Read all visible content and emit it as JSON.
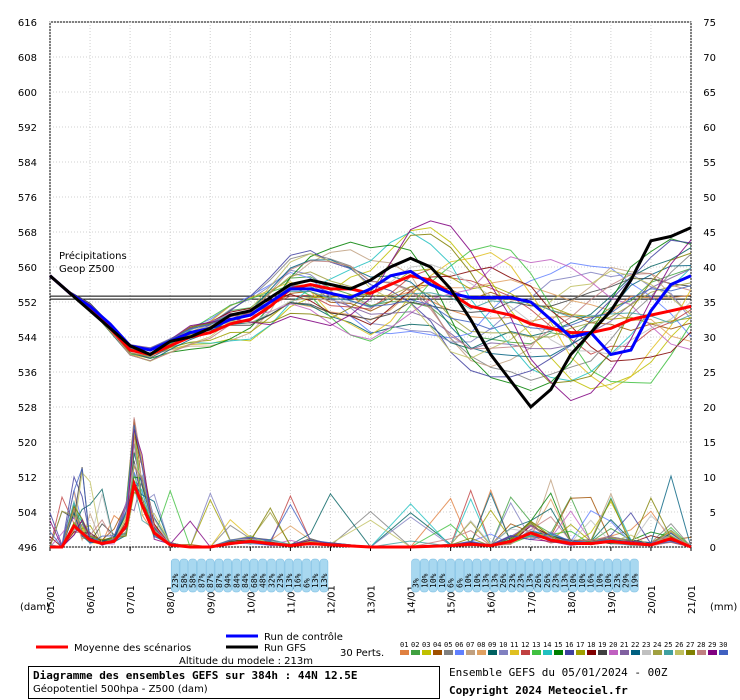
{
  "chart_data": {
    "type": "line",
    "title": "Diagramme des ensembles GEFS sur 384h : 44N 12.5E",
    "subtitle": "Géopotentiel 500hpa - Z500 (dam)",
    "left_axis": {
      "label": "(dam)",
      "min": 496,
      "max": 616,
      "ticks": [
        616,
        608,
        600,
        592,
        584,
        576,
        568,
        560,
        552,
        544,
        536,
        528,
        520,
        512,
        504,
        496
      ]
    },
    "right_axis": {
      "label": "(mm)",
      "min": 0,
      "max": 75,
      "ticks": [
        75,
        70,
        65,
        60,
        55,
        50,
        45,
        40,
        35,
        30,
        25,
        20,
        15,
        10,
        5,
        0
      ]
    },
    "x_labels": [
      "05/01",
      "06/01",
      "07/01",
      "08/01",
      "09/01",
      "10/01",
      "11/01",
      "12/01",
      "13/01",
      "14/01",
      "15/01",
      "16/01",
      "17/01",
      "18/01",
      "19/01",
      "20/01",
      "21/01"
    ],
    "reference_line": 553,
    "legend_left_title": "Précipitations",
    "legend_left_subtitle": "Geop Z500",
    "series": [
      {
        "name": "Moyenne des scénarios",
        "color": "#ff0000",
        "x": [
          0,
          0.5,
          1,
          1.5,
          2,
          2.5,
          3,
          3.5,
          4,
          4.5,
          5,
          5.5,
          6,
          6.5,
          7,
          7.5,
          8,
          8.5,
          9,
          9.5,
          10,
          10.5,
          11,
          11.5,
          12,
          12.5,
          13,
          13.5,
          14,
          14.5,
          15,
          15.5,
          16
        ],
        "values": [
          558,
          554,
          551,
          546,
          541,
          540,
          542,
          544,
          545,
          547,
          548,
          551,
          555,
          556,
          555,
          555,
          554,
          556,
          558,
          557,
          554,
          551,
          550,
          549,
          547,
          546,
          545,
          545,
          546,
          548,
          549,
          550,
          551
        ]
      },
      {
        "name": "Run de contrôle",
        "color": "#0000ff",
        "x": [
          0,
          0.5,
          1,
          1.5,
          2,
          2.5,
          3,
          3.5,
          4,
          4.5,
          5,
          5.5,
          6,
          6.5,
          7,
          7.5,
          8,
          8.5,
          9,
          9.5,
          10,
          10.5,
          11,
          11.5,
          12,
          12.5,
          13,
          13.5,
          14,
          14.5,
          15,
          15.5,
          16
        ],
        "values": [
          558,
          554,
          551,
          547,
          542,
          541,
          543,
          545,
          546,
          548,
          549,
          552,
          555,
          555,
          554,
          553,
          555,
          558,
          559,
          556,
          554,
          553,
          553,
          553,
          552,
          548,
          544,
          545,
          540,
          541,
          550,
          556,
          558
        ]
      },
      {
        "name": "Run GFS",
        "color": "#000000",
        "x": [
          0,
          0.5,
          1,
          1.5,
          2,
          2.5,
          3,
          3.5,
          4,
          4.5,
          5,
          5.5,
          6,
          6.5,
          7,
          7.5,
          8,
          8.5,
          9,
          9.5,
          10,
          10.5,
          11,
          11.5,
          12,
          12.5,
          13,
          13.5,
          14,
          14.5,
          15,
          15.5,
          16
        ],
        "values": [
          558,
          554,
          550,
          546,
          542,
          540,
          543,
          544,
          546,
          549,
          550,
          553,
          556,
          557,
          556,
          555,
          557,
          560,
          562,
          560,
          555,
          548,
          540,
          534,
          528,
          532,
          540,
          545,
          550,
          557,
          566,
          567,
          569
        ]
      }
    ],
    "precip_mean": {
      "x": [
        0,
        0.3,
        0.6,
        0.8,
        1,
        1.3,
        1.6,
        1.9,
        2.1,
        2.3,
        2.6,
        3,
        3.5,
        4,
        4.5,
        5,
        5.5,
        6,
        6.5,
        7,
        8,
        9,
        10,
        10.5,
        11,
        11.5,
        12,
        12.5,
        13,
        13.5,
        14,
        14.5,
        15,
        15.5,
        16
      ],
      "mm": [
        0,
        0,
        3,
        2,
        1,
        0.5,
        0.8,
        3,
        9,
        6,
        2,
        0.3,
        0,
        0,
        0.5,
        0.8,
        0.5,
        0.2,
        0.5,
        0.3,
        0,
        0,
        0.2,
        0.4,
        0.2,
        0.8,
        2,
        1,
        0.5,
        0.5,
        0.8,
        0.5,
        0.3,
        1.2,
        0
      ]
    },
    "percent_bands": [
      {
        "start": 3,
        "values": [
          "23%",
          "58%",
          "58%",
          "87%",
          "87%",
          "87%",
          "94%",
          "84%",
          "84%",
          "68%",
          "48%",
          "32%",
          "23%",
          "13%",
          "16%",
          "6%",
          "13%",
          "13%"
        ]
      },
      {
        "start": 9,
        "values": [
          "3%",
          "10%",
          "10%",
          "10%",
          "6%",
          "6%",
          "10%",
          "10%",
          "13%",
          "13%",
          "26%",
          "23%",
          "23%",
          "13%",
          "26%",
          "26%",
          "23%",
          "13%",
          "10%",
          "10%",
          "16%",
          "10%",
          "10%",
          "23%",
          "29%",
          "19%"
        ]
      }
    ],
    "members_label": "30 Perts.",
    "member_ids": [
      "01",
      "02",
      "03",
      "04",
      "05",
      "06",
      "07",
      "08",
      "09",
      "10",
      "11",
      "12",
      "13",
      "14",
      "15",
      "16",
      "17",
      "18",
      "19",
      "20",
      "21",
      "22",
      "23",
      "24",
      "25",
      "26",
      "27",
      "28",
      "29",
      "30"
    ],
    "member_colors": [
      "#e08040",
      "#40a040",
      "#c0c000",
      "#a05000",
      "#808080",
      "#6080ff",
      "#c0a080",
      "#e0a060",
      "#006060",
      "#8080c0",
      "#e0c020",
      "#c04040",
      "#40c040",
      "#20c0c0",
      "#008000",
      "#4040a0",
      "#a0a000",
      "#800000",
      "#404040",
      "#c060c0",
      "#8060a0",
      "#006080",
      "#c0c0c0",
      "#a0a040",
      "#40a0a0",
      "#c0c060",
      "#808000",
      "#c08080",
      "#800080",
      "#4060c0"
    ],
    "legend_items": [
      "Moyenne des scénarios",
      "Run de contrôle",
      "Run GFS"
    ],
    "altitude": "Altitude du modele : 213m",
    "ensemble_label": "Ensemble GEFS du 05/01/2024 - 00Z",
    "copyright": "Copyright 2024 Meteociel.fr"
  },
  "info_box": {
    "title": "Diagramme des ensembles GEFS sur 384h : 44N 12.5E",
    "subtitle": "Géopotentiel 500hpa - Z500 (dam)"
  }
}
